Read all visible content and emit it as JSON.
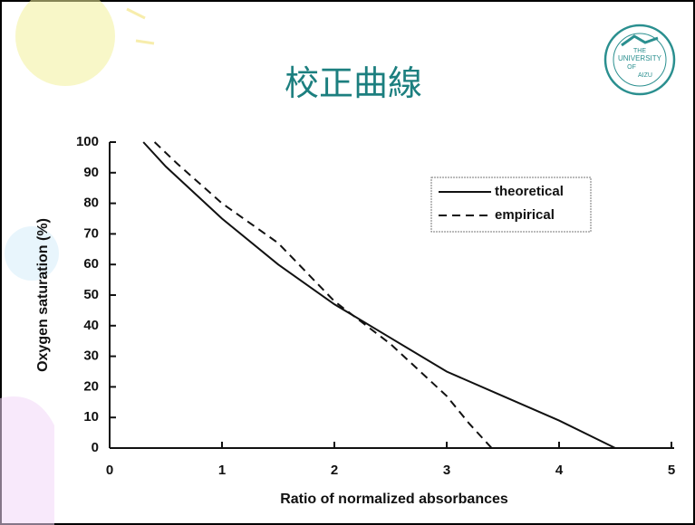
{
  "chart_data": {
    "type": "line",
    "title": "校正曲線",
    "logo_text": [
      "THE",
      "UNIVERSITY",
      "OF",
      "AIZU"
    ],
    "x_label": "Ratio of normalized absorbances",
    "y_label": "Oxygen saturation (%)",
    "xlim": [
      0,
      5
    ],
    "xticks": [
      0,
      1,
      2,
      3,
      4,
      5
    ],
    "ylim": [
      0,
      100
    ],
    "yticks": [
      0,
      10,
      20,
      30,
      40,
      50,
      60,
      70,
      80,
      90,
      100
    ],
    "legend": "upper right",
    "series": [
      {
        "name": "theoretical",
        "color": "#111111",
        "style": "solid",
        "x": [
          0.3,
          0.5,
          1,
          1.5,
          2,
          2.5,
          3,
          3.5,
          4,
          4.5
        ],
        "values": [
          100,
          92,
          75,
          60,
          47,
          36,
          25,
          17,
          9,
          0
        ]
      },
      {
        "name": "empirical",
        "color": "#111111",
        "style": "dashed",
        "x": [
          0.4,
          0.6,
          1,
          1.5,
          2,
          2.5,
          3,
          3.2,
          3.4
        ],
        "values": [
          100,
          93,
          80,
          67,
          48,
          34,
          17,
          8,
          0
        ]
      }
    ]
  }
}
